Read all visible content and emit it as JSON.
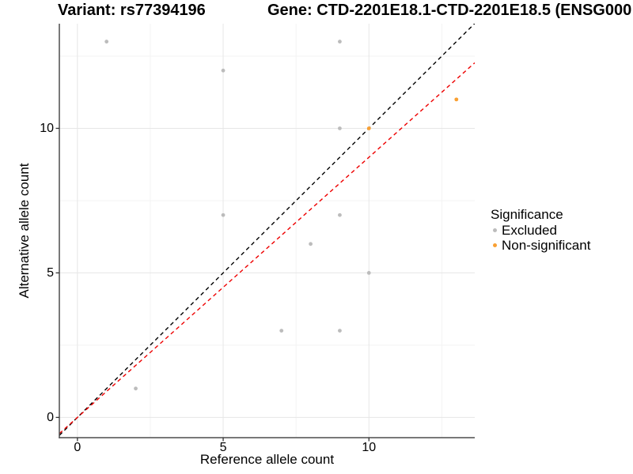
{
  "titles": {
    "variant": "Variant: rs77394196",
    "gene": "Gene: CTD-2201E18.1-CTD-2201E18.5 (ENSG000"
  },
  "legend": {
    "title": "Significance",
    "items": [
      {
        "label": "Excluded",
        "color": "#BCBCBC"
      },
      {
        "label": "Non-significant",
        "color": "#F9A033"
      }
    ]
  },
  "chart_data": {
    "type": "scatter",
    "xlabel": "Reference allele count",
    "ylabel": "Alternative allele count",
    "xlim": [
      -0.62,
      13.63
    ],
    "ylim": [
      -0.7,
      13.62
    ],
    "x_ticks": [
      0,
      5,
      10
    ],
    "y_ticks": [
      0,
      5,
      10
    ],
    "x_minor_gridlines": [
      2.5,
      7.5,
      12.5
    ],
    "y_minor_gridlines": [
      2.5,
      7.5,
      12.5
    ],
    "grid": true,
    "legend_position": "right",
    "colors": {
      "grid_major": "#E6E6E6",
      "grid_minor": "#F3F3F3",
      "axis_line": "#4D4D4D",
      "tick_mark": "#333333"
    },
    "series": [
      {
        "name": "Excluded",
        "color": "#BCBCBC",
        "points": [
          [
            1,
            13
          ],
          [
            5,
            12
          ],
          [
            9,
            13
          ],
          [
            9,
            10
          ],
          [
            5,
            7
          ],
          [
            9,
            7
          ],
          [
            8,
            6
          ],
          [
            10,
            5
          ],
          [
            7,
            3
          ],
          [
            9,
            3
          ],
          [
            2,
            1
          ]
        ]
      },
      {
        "name": "Non-significant",
        "color": "#F9A033",
        "points": [
          [
            10,
            10
          ],
          [
            13,
            11
          ]
        ]
      }
    ],
    "reference_lines": [
      {
        "name": "identity-line",
        "slope": 1,
        "intercept": 0,
        "color": "#000000",
        "style": "dashed"
      },
      {
        "name": "expected-ratio-line",
        "slope": 0.9,
        "intercept": 0,
        "color": "#EE0000",
        "style": "dashed"
      }
    ]
  }
}
